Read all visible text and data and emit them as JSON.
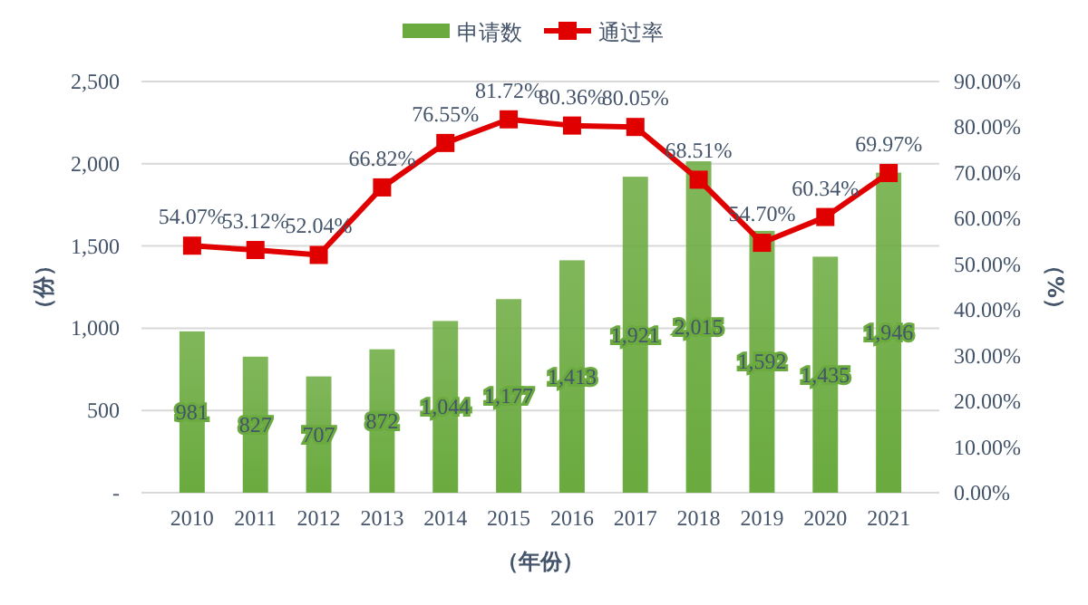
{
  "chart_data": {
    "type": "bar",
    "xlabel": "（年份）",
    "ylabel": "（份）",
    "y2label": "（%）",
    "categories": [
      "2010",
      "2011",
      "2012",
      "2013",
      "2014",
      "2015",
      "2016",
      "2017",
      "2018",
      "2019",
      "2020",
      "2021"
    ],
    "series": [
      {
        "name": "申请数",
        "color": "#6aaa3e",
        "values": [
          981,
          827,
          707,
          872,
          1044,
          1177,
          1413,
          1921,
          2015,
          1592,
          1435,
          1946
        ],
        "value_labels": [
          "981",
          "827",
          "707",
          "872",
          "1,044",
          "1,177",
          "1,413",
          "1,921",
          "2,015",
          "1,592",
          "1,435",
          "1,946"
        ]
      },
      {
        "name": "通过率",
        "type": "line",
        "axis": "y2",
        "color": "#e00000",
        "marker": "square",
        "values": [
          54.07,
          53.12,
          52.04,
          66.82,
          76.55,
          81.72,
          80.36,
          80.05,
          68.51,
          54.7,
          60.34,
          69.97
        ],
        "value_labels": [
          "54.07%",
          "53.12%",
          "52.04%",
          "66.82%",
          "76.55%",
          "81.72%",
          "80.36%",
          "80.05%",
          "68.51%",
          "54.70%",
          "60.34%",
          "69.97%"
        ]
      }
    ],
    "ylim": [
      0,
      2500
    ],
    "yticks": [
      {
        "value": 0,
        "label": "-"
      },
      {
        "value": 500,
        "label": "500"
      },
      {
        "value": 1000,
        "label": "1,000"
      },
      {
        "value": 1500,
        "label": "1,500"
      },
      {
        "value": 2000,
        "label": "2,000"
      },
      {
        "value": 2500,
        "label": "2,500"
      }
    ],
    "y2lim": [
      0,
      90
    ],
    "y2ticks": [
      {
        "value": 0,
        "label": "0.00%"
      },
      {
        "value": 10,
        "label": "10.00%"
      },
      {
        "value": 20,
        "label": "20.00%"
      },
      {
        "value": 30,
        "label": "30.00%"
      },
      {
        "value": 40,
        "label": "40.00%"
      },
      {
        "value": 50,
        "label": "50.00%"
      },
      {
        "value": 60,
        "label": "60.00%"
      },
      {
        "value": 70,
        "label": "70.00%"
      },
      {
        "value": 80,
        "label": "80.00%"
      },
      {
        "value": 90,
        "label": "90.00%"
      }
    ],
    "grid": "y",
    "legend": "top"
  }
}
